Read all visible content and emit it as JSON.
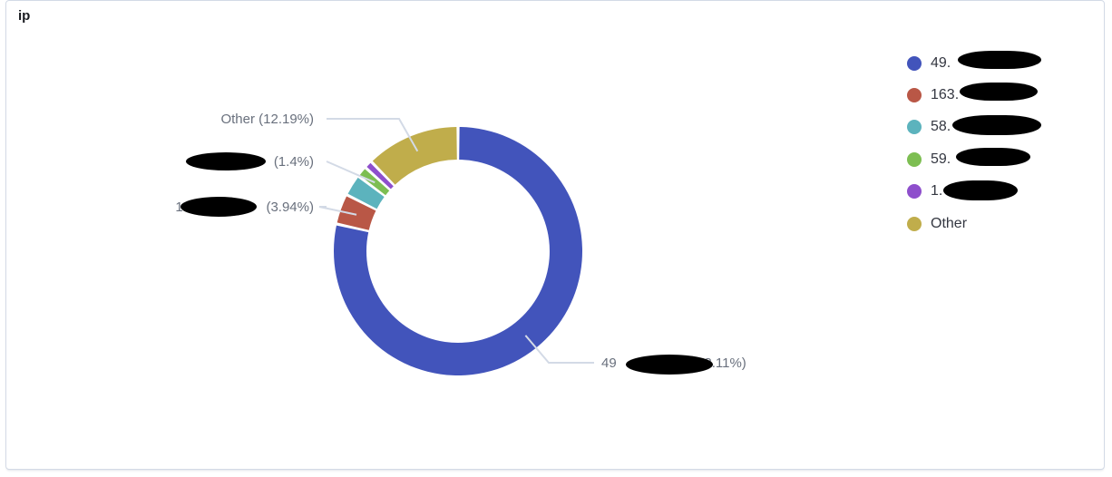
{
  "panel": {
    "title": "ip"
  },
  "chart_data": {
    "type": "pie",
    "donut": true,
    "title": "ip",
    "slices": [
      {
        "label": "49.",
        "percent": 78.11,
        "color": "#4254bb",
        "callout": "49",
        "callout_pct": "(78.11%)"
      },
      {
        "label": "163.",
        "percent": 3.94,
        "color": "#b95746",
        "callout": "163.",
        "callout_pct": "(3.94%)"
      },
      {
        "label": "58.",
        "percent": 2.8,
        "color": "#5cb3bd",
        "callout": "",
        "callout_pct": ""
      },
      {
        "label": "59.",
        "percent": 1.4,
        "color": "#7dbe52",
        "callout": "59",
        "callout_pct": "(1.4%)"
      },
      {
        "label": "1.",
        "percent": 1.05,
        "color": "#8e4fcc",
        "callout": "",
        "callout_pct": ""
      },
      {
        "label": "Other",
        "percent": 12.19,
        "color": "#c0ad4b",
        "callout": "Other",
        "callout_pct": "(12.19%)"
      }
    ],
    "legend_position": "top-right"
  }
}
